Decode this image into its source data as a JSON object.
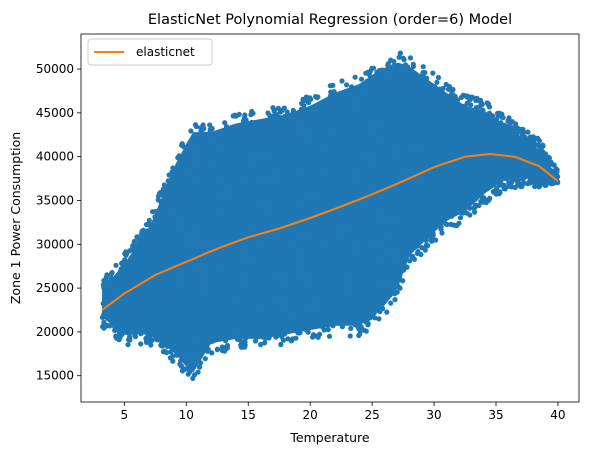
{
  "chart_data": {
    "type": "scatter",
    "title": "ElasticNet Polynomial Regression (order=6) Model",
    "xlabel": "Temperature",
    "ylabel": "Zone 1 Power Consumption",
    "xlim": [
      1.5,
      41.7
    ],
    "ylim": [
      12000,
      54000
    ],
    "xticks": [
      5,
      10,
      15,
      20,
      25,
      30,
      35,
      40
    ],
    "yticks": [
      15000,
      20000,
      25000,
      30000,
      35000,
      40000,
      45000,
      50000
    ],
    "legend": {
      "placement": "top-left",
      "entries": [
        "elasticnet"
      ]
    },
    "grid": false,
    "colors": {
      "scatter": "#1f77b4",
      "line": "#ff7f0e"
    },
    "series": [
      {
        "name": "elasticnet",
        "type": "line",
        "x": [
          3.2,
          5,
          7.5,
          10,
          12.5,
          15,
          17.5,
          20,
          22.5,
          25,
          27.5,
          30,
          32.5,
          34.5,
          36.5,
          38.5,
          40
        ],
        "y": [
          22500,
          24400,
          26500,
          28000,
          29500,
          30800,
          31800,
          33000,
          34300,
          35700,
          37200,
          38800,
          40000,
          40300,
          40000,
          38900,
          37200
        ]
      }
    ],
    "scatter_cloud": {
      "description_values": "observations",
      "upper_envelope": {
        "x": [
          3.2,
          5,
          7,
          9,
          10.5,
          12,
          14,
          16,
          18,
          20,
          22,
          24,
          25.5,
          27,
          28,
          29.5,
          31,
          32.5,
          34,
          35.5,
          37,
          38.5,
          40
        ],
        "y": [
          26000,
          29000,
          33000,
          40000,
          44000,
          44000,
          45000,
          45500,
          46000,
          47000,
          48500,
          49500,
          51000,
          52000,
          51500,
          50000,
          48500,
          47000,
          46500,
          45000,
          43500,
          42000,
          38500
        ]
      },
      "lower_envelope": {
        "x": [
          3.2,
          5,
          7,
          9,
          10.5,
          12,
          14,
          16,
          18,
          20,
          22,
          24,
          25.5,
          27,
          28,
          29.5,
          31,
          32.5,
          34,
          35.5,
          37,
          38.5,
          40
        ],
        "y": [
          20500,
          18500,
          18500,
          16500,
          14000,
          17500,
          18000,
          18000,
          18500,
          19000,
          19500,
          19500,
          21000,
          23500,
          27500,
          29500,
          31500,
          32500,
          34500,
          36000,
          36500,
          36500,
          37000
        ]
      },
      "point_count": 2600
    }
  }
}
